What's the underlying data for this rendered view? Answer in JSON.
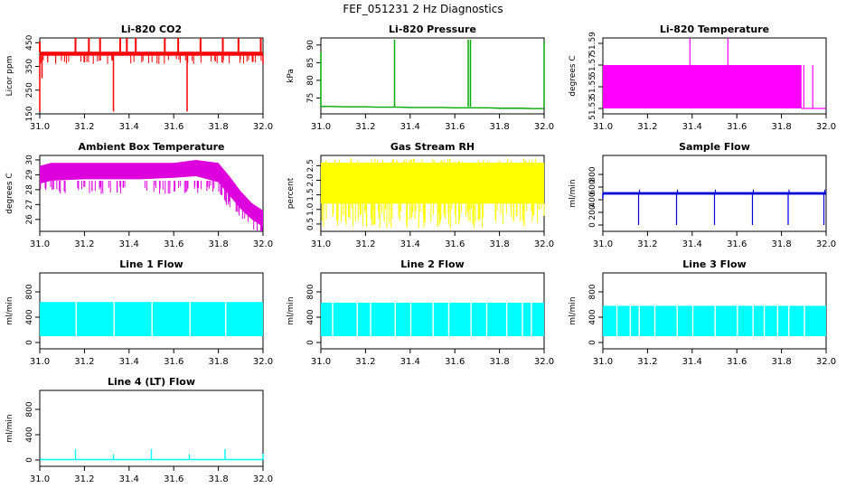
{
  "figure_title": "FEF_051231  2 Hz Diagnostics",
  "chart_data": [
    {
      "id": "co2",
      "type": "line",
      "title": "Li-820 CO2",
      "ylabel": "Licor ppm",
      "xlabel": "",
      "color": "#ff0000",
      "xlim": [
        31.0,
        32.0
      ],
      "ylim": [
        150,
        470
      ],
      "xticks": [
        31.0,
        31.2,
        31.4,
        31.6,
        31.8,
        32.0
      ],
      "xtick_labels": [
        "31.0",
        "31.2",
        "31.4",
        "31.6",
        "31.8",
        "32.0"
      ],
      "yticks": [
        150,
        250,
        350,
        450
      ],
      "ytick_labels": [
        "150",
        "250",
        "350",
        "450"
      ],
      "band": {
        "low": 395,
        "high": 412
      },
      "spikes_up": [
        [
          31.0,
          455
        ],
        [
          31.16,
          470
        ],
        [
          31.22,
          470
        ],
        [
          31.27,
          470
        ],
        [
          31.36,
          470
        ],
        [
          31.39,
          470
        ],
        [
          31.43,
          470
        ],
        [
          31.56,
          470
        ],
        [
          31.62,
          470
        ],
        [
          31.72,
          470
        ],
        [
          31.82,
          470
        ],
        [
          31.89,
          470
        ],
        [
          31.99,
          470
        ]
      ],
      "spikes_down": [
        [
          31.0,
          160
        ],
        [
          31.01,
          300
        ],
        [
          31.33,
          160
        ],
        [
          31.66,
          160
        ],
        [
          32.0,
          360
        ]
      ]
    },
    {
      "id": "pressure",
      "type": "line",
      "title": "Li-820 Pressure",
      "ylabel": "kPa",
      "xlabel": "",
      "color": "#00aa00",
      "xlim": [
        31.0,
        32.0
      ],
      "ylim": [
        70.5,
        92
      ],
      "xticks": [
        31.0,
        31.2,
        31.4,
        31.6,
        31.8,
        32.0
      ],
      "xtick_labels": [
        "31.0",
        "31.2",
        "31.4",
        "31.6",
        "31.8",
        "32.0"
      ],
      "yticks": [
        75,
        80,
        85,
        90
      ],
      "ytick_labels": [
        "75",
        "80",
        "85",
        "90"
      ],
      "series": {
        "x": [
          31.0,
          31.05,
          31.1,
          31.15,
          31.2,
          31.25,
          31.3,
          31.35,
          31.4,
          31.45,
          31.5,
          31.55,
          31.6,
          31.65,
          31.7,
          31.75,
          31.8,
          31.85,
          31.9,
          31.95,
          32.0
        ],
        "y": [
          72.6,
          72.6,
          72.5,
          72.5,
          72.5,
          72.4,
          72.4,
          72.4,
          72.3,
          72.3,
          72.3,
          72.3,
          72.2,
          72.2,
          72.2,
          72.2,
          72.1,
          72.1,
          72.1,
          72.0,
          72.0
        ]
      },
      "spikes_up": [
        [
          31.0,
          88
        ],
        [
          31.33,
          91.5
        ],
        [
          31.66,
          91.5
        ],
        [
          31.67,
          91.5
        ],
        [
          32.0,
          91
        ]
      ]
    },
    {
      "id": "temperature",
      "type": "line",
      "title": "Li-820 Temperature",
      "ylabel": "degrees C",
      "xlabel": "",
      "color": "#ff00ff",
      "xlim": [
        31.0,
        32.0
      ],
      "ylim": [
        51.525,
        51.595
      ],
      "xticks": [
        31.0,
        31.2,
        31.4,
        31.6,
        31.8,
        32.0
      ],
      "xtick_labels": [
        "31.0",
        "31.2",
        "31.4",
        "31.6",
        "31.8",
        "32.0"
      ],
      "yticks": [
        51.53,
        51.55,
        51.57,
        51.59
      ],
      "ytick_labels": [
        "51.53",
        "51.55",
        "51.57",
        "51.59"
      ],
      "band": {
        "x_end": 31.89,
        "low": 51.53,
        "high": 51.57
      },
      "spikes_up": [
        [
          31.39,
          51.595
        ],
        [
          31.56,
          51.595
        ],
        [
          31.9,
          51.57
        ],
        [
          31.94,
          51.57
        ]
      ],
      "tail": {
        "x_start": 31.89,
        "x_end": 32.0,
        "y": 51.53
      }
    },
    {
      "id": "ambient",
      "type": "line",
      "title": "Ambient Box Temperature",
      "ylabel": "degrees C",
      "xlabel": "",
      "color": "#dd00dd",
      "xlim": [
        31.0,
        32.0
      ],
      "ylim": [
        25.2,
        30.3
      ],
      "xticks": [
        31.0,
        31.2,
        31.4,
        31.6,
        31.8,
        32.0
      ],
      "xtick_labels": [
        "31.0",
        "31.2",
        "31.4",
        "31.6",
        "31.8",
        "32.0"
      ],
      "yticks": [
        26,
        27,
        28,
        29,
        30
      ],
      "ytick_labels": [
        "26",
        "27",
        "28",
        "29",
        "30"
      ],
      "envelope": {
        "x": [
          31.0,
          31.05,
          31.2,
          31.3,
          31.45,
          31.6,
          31.7,
          31.8,
          31.85,
          31.9,
          31.95,
          31.98,
          32.0
        ],
        "high": [
          29.6,
          29.8,
          29.8,
          29.8,
          29.8,
          29.8,
          30.0,
          29.8,
          28.9,
          27.9,
          27.1,
          26.8,
          26.6
        ],
        "low": [
          28.4,
          28.6,
          28.7,
          28.7,
          28.7,
          28.8,
          28.9,
          28.5,
          27.6,
          26.7,
          26.0,
          25.7,
          25.5
        ],
        "dip_low": 27.7
      }
    },
    {
      "id": "rh",
      "type": "line",
      "title": "Gas Stream RH",
      "ylabel": "percent",
      "xlabel": "",
      "color": "#ffff00",
      "xlim": [
        31.0,
        32.0
      ],
      "ylim": [
        0.25,
        2.85
      ],
      "xticks": [
        31.0,
        31.2,
        31.4,
        31.6,
        31.8,
        32.0
      ],
      "xtick_labels": [
        "31.0",
        "31.2",
        "31.4",
        "31.6",
        "31.8",
        "32.0"
      ],
      "yticks": [
        0.5,
        1.0,
        1.5,
        2.0,
        2.5
      ],
      "ytick_labels": [
        "0.5",
        "1.0",
        "1.5",
        "2.0",
        "2.5"
      ],
      "band": {
        "low": 1.2,
        "high": 2.6,
        "dip_low": 0.35,
        "top": 2.75
      }
    },
    {
      "id": "sample",
      "type": "line",
      "title": "Sample Flow",
      "ylabel": "ml/min",
      "xlabel": "",
      "color": "#0000dd",
      "xlim": [
        31.0,
        32.0
      ],
      "ylim": [
        -100,
        1100
      ],
      "xticks": [
        31.0,
        31.2,
        31.4,
        31.6,
        31.8,
        32.0
      ],
      "xtick_labels": [
        "31.0",
        "31.2",
        "31.4",
        "31.6",
        "31.8",
        "32.0"
      ],
      "yticks": [
        0,
        200,
        400,
        600,
        800
      ],
      "ytick_labels": [
        "0",
        "200",
        "400",
        "600",
        "800"
      ],
      "level": 500,
      "drops": [
        31.16,
        31.33,
        31.5,
        31.67,
        31.83,
        31.99
      ],
      "drop_value": 0,
      "spike_value": 560
    },
    {
      "id": "line1",
      "type": "line",
      "title": "Line 1 Flow",
      "ylabel": "ml/min",
      "xlabel": "",
      "color": "#00ffff",
      "xlim": [
        31.0,
        32.0
      ],
      "ylim": [
        -100,
        1100
      ],
      "xticks": [
        31.0,
        31.2,
        31.4,
        31.6,
        31.8,
        32.0
      ],
      "xtick_labels": [
        "31.0",
        "31.2",
        "31.4",
        "31.6",
        "31.8",
        "32.0"
      ],
      "yticks": [
        0,
        400,
        800
      ],
      "ytick_labels": [
        "0",
        "400",
        "800"
      ],
      "band": {
        "low": 100,
        "high": 640
      },
      "gaps": [
        31.16,
        31.33,
        31.5,
        31.67,
        31.83
      ]
    },
    {
      "id": "line2",
      "type": "line",
      "title": "Line 2 Flow",
      "ylabel": "ml/min",
      "xlabel": "",
      "color": "#00ffff",
      "xlim": [
        31.0,
        32.0
      ],
      "ylim": [
        -100,
        1100
      ],
      "xticks": [
        31.0,
        31.2,
        31.4,
        31.6,
        31.8,
        32.0
      ],
      "xtick_labels": [
        "31.0",
        "31.2",
        "31.4",
        "31.6",
        "31.8",
        "32.0"
      ],
      "yticks": [
        0,
        400,
        800
      ],
      "ytick_labels": [
        "0",
        "400",
        "800"
      ],
      "band": {
        "low": 100,
        "high": 630
      },
      "gaps": [
        31.16,
        31.33,
        31.5,
        31.67,
        31.83,
        31.94,
        31.05,
        31.22,
        31.4,
        31.57,
        31.74,
        31.9
      ]
    },
    {
      "id": "line3",
      "type": "line",
      "title": "Line 3 Flow",
      "ylabel": "ml/min",
      "xlabel": "",
      "color": "#00ffff",
      "xlim": [
        31.0,
        32.0
      ],
      "ylim": [
        -100,
        1100
      ],
      "xticks": [
        31.0,
        31.2,
        31.4,
        31.6,
        31.8,
        32.0
      ],
      "xtick_labels": [
        "31.0",
        "31.2",
        "31.4",
        "31.6",
        "31.8",
        "32.0"
      ],
      "yticks": [
        0,
        400,
        800
      ],
      "ytick_labels": [
        "0",
        "400",
        "800"
      ],
      "band": {
        "low": 100,
        "high": 580
      },
      "gaps": [
        31.16,
        31.33,
        31.5,
        31.67,
        31.83,
        31.06,
        31.12,
        31.23,
        31.4,
        31.6,
        31.72,
        31.78,
        31.9
      ]
    },
    {
      "id": "line4",
      "type": "line",
      "title": "Line 4 (LT) Flow",
      "ylabel": "ml/min",
      "xlabel": "",
      "color": "#00ffff",
      "xlim": [
        31.0,
        32.0
      ],
      "ylim": [
        -100,
        1100
      ],
      "xticks": [
        31.0,
        31.2,
        31.4,
        31.6,
        31.8,
        32.0
      ],
      "xtick_labels": [
        "31.0",
        "31.2",
        "31.4",
        "31.6",
        "31.8",
        "32.0"
      ],
      "yticks": [
        0,
        400,
        800
      ],
      "ytick_labels": [
        "0",
        "400",
        "800"
      ],
      "level": 8,
      "spikes_up": [
        [
          31.16,
          170
        ],
        [
          31.33,
          90
        ],
        [
          31.5,
          170
        ],
        [
          31.67,
          90
        ],
        [
          31.83,
          170
        ],
        [
          32.0,
          100
        ]
      ]
    }
  ]
}
